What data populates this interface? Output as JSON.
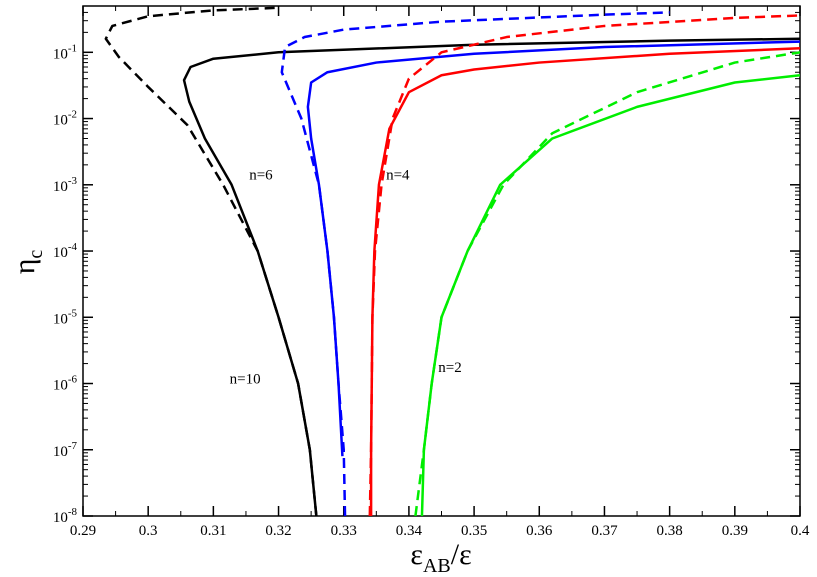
{
  "chart_data": {
    "type": "line",
    "title": "",
    "xlabel": {
      "main": "ε",
      "sub": "AB",
      "tail": "/ε"
    },
    "ylabel": {
      "main": "η",
      "sub": "c"
    },
    "xlim": [
      0.29,
      0.4
    ],
    "ylim": [
      1e-08,
      0.5
    ],
    "yscale": "log",
    "grid": false,
    "legend": "none",
    "x_ticks": [
      "0.29",
      "0.3",
      "0.31",
      "0.32",
      "0.33",
      "0.34",
      "0.35",
      "0.36",
      "0.37",
      "0.38",
      "0.39",
      "0.4"
    ],
    "y_ticks": [
      {
        "base": "10",
        "exp": "-8"
      },
      {
        "base": "10",
        "exp": "-7"
      },
      {
        "base": "10",
        "exp": "-6"
      },
      {
        "base": "10",
        "exp": "-5"
      },
      {
        "base": "10",
        "exp": "-4"
      },
      {
        "base": "10",
        "exp": "-3"
      },
      {
        "base": "10",
        "exp": "-2"
      },
      {
        "base": "10",
        "exp": "-1"
      }
    ],
    "annotations": [
      {
        "text": "n=10",
        "x": 0.3125,
        "y": 1e-06
      },
      {
        "text": "n=6",
        "x": 0.3155,
        "y": 0.0012
      },
      {
        "text": "n=4",
        "x": 0.3365,
        "y": 0.0012
      },
      {
        "text": "n=2",
        "x": 0.3445,
        "y": 1.5e-06
      }
    ],
    "series": [
      {
        "color": "#000000",
        "style": "solid",
        "points": [
          [
            0.3258,
            1e-08
          ],
          [
            0.3248,
            1e-07
          ],
          [
            0.323,
            1e-06
          ],
          [
            0.32,
            1e-05
          ],
          [
            0.3168,
            0.0001
          ],
          [
            0.3128,
            0.001
          ],
          [
            0.3087,
            0.005
          ],
          [
            0.3063,
            0.018
          ],
          [
            0.3055,
            0.038
          ],
          [
            0.3065,
            0.06
          ],
          [
            0.31,
            0.08
          ],
          [
            0.32,
            0.1
          ],
          [
            0.35,
            0.13
          ],
          [
            0.38,
            0.15
          ],
          [
            0.4,
            0.16
          ]
        ]
      },
      {
        "color": "#000000",
        "style": "dashed",
        "points": [
          [
            0.3258,
            1e-08
          ],
          [
            0.3248,
            1e-07
          ],
          [
            0.323,
            1e-06
          ],
          [
            0.32,
            1e-05
          ],
          [
            0.3168,
            0.0001
          ],
          [
            0.3115,
            0.001
          ],
          [
            0.306,
            0.008
          ],
          [
            0.3,
            0.03
          ],
          [
            0.2955,
            0.085
          ],
          [
            0.2935,
            0.16
          ],
          [
            0.2945,
            0.25
          ],
          [
            0.3,
            0.35
          ],
          [
            0.31,
            0.43
          ],
          [
            0.32,
            0.47
          ]
        ]
      },
      {
        "color": "#0000ff",
        "style": "solid",
        "points": [
          [
            0.3298,
            8e-08
          ],
          [
            0.3292,
            1e-06
          ],
          [
            0.3285,
            1e-05
          ],
          [
            0.3275,
            0.0001
          ],
          [
            0.3262,
            0.001
          ],
          [
            0.325,
            0.005
          ],
          [
            0.3245,
            0.015
          ],
          [
            0.325,
            0.035
          ],
          [
            0.3275,
            0.05
          ],
          [
            0.335,
            0.07
          ],
          [
            0.35,
            0.095
          ],
          [
            0.37,
            0.12
          ],
          [
            0.4,
            0.145
          ]
        ]
      },
      {
        "color": "#0000ff",
        "style": "dashed",
        "points": [
          [
            0.3302,
            1e-08
          ],
          [
            0.33,
            1e-07
          ],
          [
            0.3292,
            1e-06
          ],
          [
            0.3285,
            1e-05
          ],
          [
            0.3275,
            0.0001
          ],
          [
            0.3262,
            0.001
          ],
          [
            0.3235,
            0.01
          ],
          [
            0.3205,
            0.05
          ],
          [
            0.321,
            0.12
          ],
          [
            0.324,
            0.17
          ],
          [
            0.33,
            0.22
          ],
          [
            0.345,
            0.29
          ],
          [
            0.37,
            0.37
          ],
          [
            0.38,
            0.4
          ]
        ]
      },
      {
        "color": "#ff0000",
        "style": "solid",
        "points": [
          [
            0.3342,
            1e-08
          ],
          [
            0.3342,
            1e-07
          ],
          [
            0.3343,
            1e-06
          ],
          [
            0.3344,
            1e-05
          ],
          [
            0.3347,
            0.0001
          ],
          [
            0.3354,
            0.001
          ],
          [
            0.337,
            0.007
          ],
          [
            0.34,
            0.025
          ],
          [
            0.345,
            0.045
          ],
          [
            0.35,
            0.055
          ],
          [
            0.36,
            0.07
          ],
          [
            0.38,
            0.095
          ],
          [
            0.4,
            0.115
          ]
        ]
      },
      {
        "color": "#ff0000",
        "style": "dashed",
        "points": [
          [
            0.334,
            1e-08
          ],
          [
            0.3342,
            1e-07
          ],
          [
            0.3344,
            1e-05
          ],
          [
            0.3348,
            0.0001
          ],
          [
            0.3358,
            0.001
          ],
          [
            0.3375,
            0.01
          ],
          [
            0.34,
            0.04
          ],
          [
            0.345,
            0.1
          ],
          [
            0.355,
            0.17
          ],
          [
            0.37,
            0.25
          ],
          [
            0.39,
            0.33
          ],
          [
            0.4,
            0.36
          ]
        ]
      },
      {
        "color": "#00ee00",
        "style": "solid",
        "points": [
          [
            0.342,
            1e-08
          ],
          [
            0.3423,
            1e-07
          ],
          [
            0.3435,
            1e-06
          ],
          [
            0.345,
            1e-05
          ],
          [
            0.349,
            0.0001
          ],
          [
            0.354,
            0.001
          ],
          [
            0.362,
            0.005
          ],
          [
            0.375,
            0.015
          ],
          [
            0.39,
            0.035
          ],
          [
            0.4,
            0.045
          ]
        ]
      },
      {
        "color": "#00ee00",
        "style": "dashed",
        "points": [
          [
            0.341,
            1e-08
          ],
          [
            0.3423,
            1e-07
          ],
          [
            0.3435,
            1e-06
          ],
          [
            0.345,
            1e-05
          ],
          [
            0.349,
            0.0001
          ],
          [
            0.3545,
            0.001
          ],
          [
            0.362,
            0.006
          ],
          [
            0.375,
            0.025
          ],
          [
            0.39,
            0.07
          ],
          [
            0.4,
            0.1
          ]
        ]
      }
    ]
  }
}
